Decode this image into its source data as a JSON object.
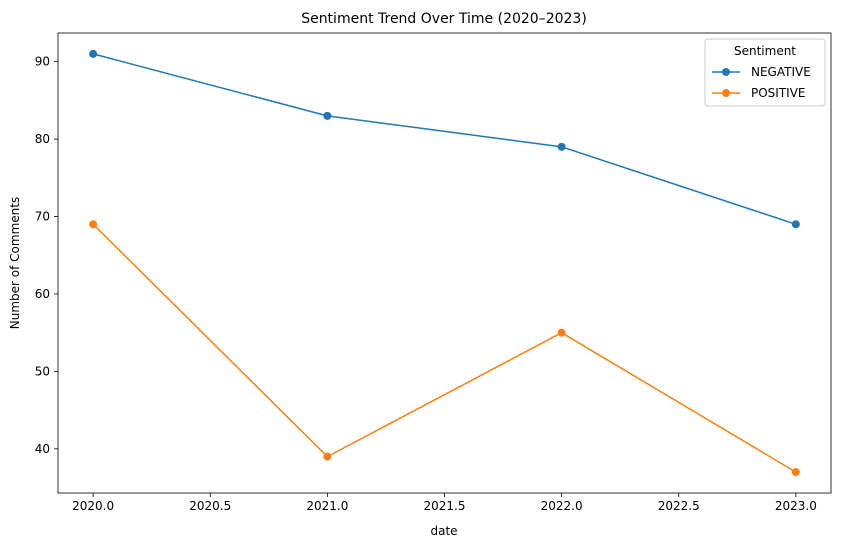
{
  "chart_data": {
    "type": "line",
    "title": "Sentiment Trend Over Time (2020–2023)",
    "xlabel": "date",
    "ylabel": "Number of Comments",
    "x": [
      2020,
      2021,
      2022,
      2023
    ],
    "xlim": [
      2019.85,
      2023.15
    ],
    "ylim": [
      34.3,
      93.7
    ],
    "xticks": [
      2020.0,
      2020.5,
      2021.0,
      2021.5,
      2022.0,
      2022.5,
      2023.0
    ],
    "xtick_labels": [
      "2020.0",
      "2020.5",
      "2021.0",
      "2021.5",
      "2022.0",
      "2022.5",
      "2023.0"
    ],
    "yticks": [
      40,
      50,
      60,
      70,
      80,
      90
    ],
    "ytick_labels": [
      "40",
      "50",
      "60",
      "70",
      "80",
      "90"
    ],
    "grid": false,
    "legend": {
      "title": "Sentiment",
      "placement": "top-right"
    },
    "series": [
      {
        "name": "NEGATIVE",
        "color": "#1f77b4",
        "values": [
          91,
          83,
          79,
          69
        ]
      },
      {
        "name": "POSITIVE",
        "color": "#ff7f0e",
        "values": [
          69,
          39,
          55,
          37
        ]
      }
    ]
  }
}
